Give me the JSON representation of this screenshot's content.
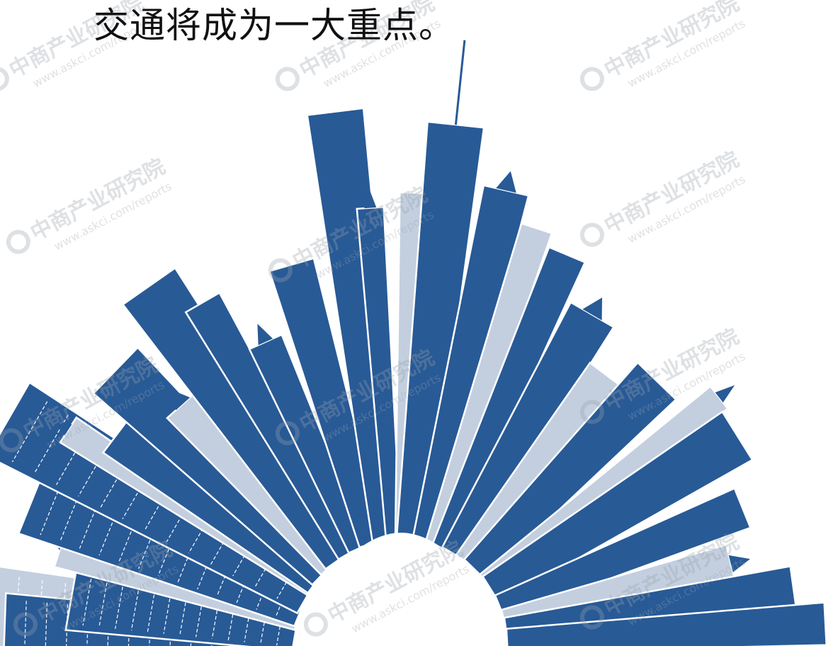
{
  "heading": {
    "text": "交通将成为一大重点。"
  },
  "illustration": {
    "icon": "city-skyline-illustration",
    "colors": {
      "dark_building": "#285a96",
      "light_building": "#c3cfdf",
      "outline": "#ffffff",
      "background": "#ffffff"
    }
  },
  "watermark": {
    "icon": "askci-logo-watermark",
    "line1": "中商产业研究院",
    "line2": "www.askci.com/reports",
    "color": "#9aa3ad"
  }
}
